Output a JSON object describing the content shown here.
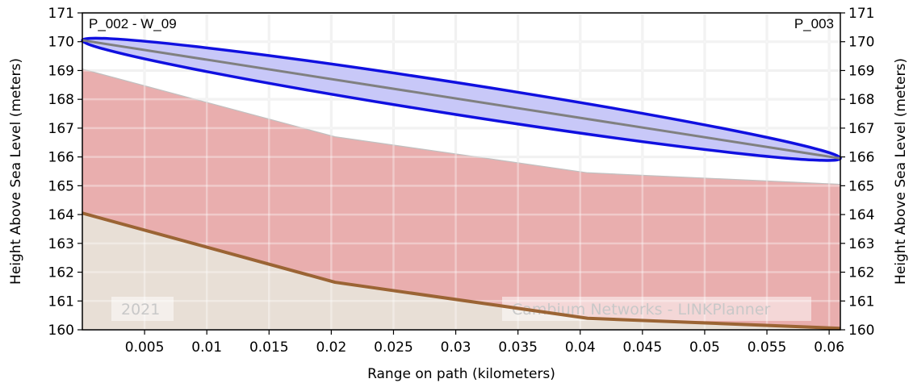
{
  "chart_data": {
    "type": "area",
    "xlabel": "Range on path (kilometers)",
    "ylabel": "Height Above Sea Level (meters)",
    "xlim": [
      0,
      0.0609
    ],
    "ylim": [
      160,
      171
    ],
    "x_ticks": [
      0.005,
      0.01,
      0.015,
      0.02,
      0.025,
      0.03,
      0.035,
      0.04,
      0.045,
      0.05,
      0.055,
      0.06
    ],
    "x_tick_labels": [
      "0.005",
      "0.01",
      "0.015",
      "0.02",
      "0.025",
      "0.03",
      "0.035",
      "0.04",
      "0.045",
      "0.05",
      "0.055",
      "0.06"
    ],
    "y_ticks": [
      160,
      161,
      162,
      163,
      164,
      165,
      166,
      167,
      168,
      169,
      170,
      171
    ],
    "y_tick_labels": [
      "160",
      "161",
      "162",
      "163",
      "164",
      "165",
      "166",
      "167",
      "168",
      "169",
      "170",
      "171"
    ],
    "grid": true,
    "left_endpoint_label": "P_002 - W_09",
    "right_endpoint_label": "P_003",
    "watermark_year": "2021",
    "watermark_credit": "Cambium Networks - LINKPlanner",
    "terrain": {
      "x": [
        0,
        0.0203,
        0.0406,
        0.0609
      ],
      "y": [
        164.05,
        161.65,
        160.4,
        160.05
      ]
    },
    "obstruction_top": {
      "x": [
        0,
        0.0203,
        0.0406,
        0.0609
      ],
      "y": [
        169.05,
        166.7,
        165.45,
        165.05
      ]
    },
    "line_of_sight": {
      "x": [
        0,
        0.0609
      ],
      "y": [
        170.05,
        165.95
      ]
    },
    "fresnel_zone_half_width_m": 0.55,
    "colors": {
      "terrain_fill": "#e8dfd6",
      "terrain_line": "#9b6434",
      "obstruction_fill": "#e9aeae",
      "obstruction_edge": "#c0c0c0",
      "fresnel_fill": "#c8c8f8",
      "fresnel_edge": "#1010e0",
      "line_of_sight": "#808080",
      "grid": "#ebebeb"
    }
  }
}
